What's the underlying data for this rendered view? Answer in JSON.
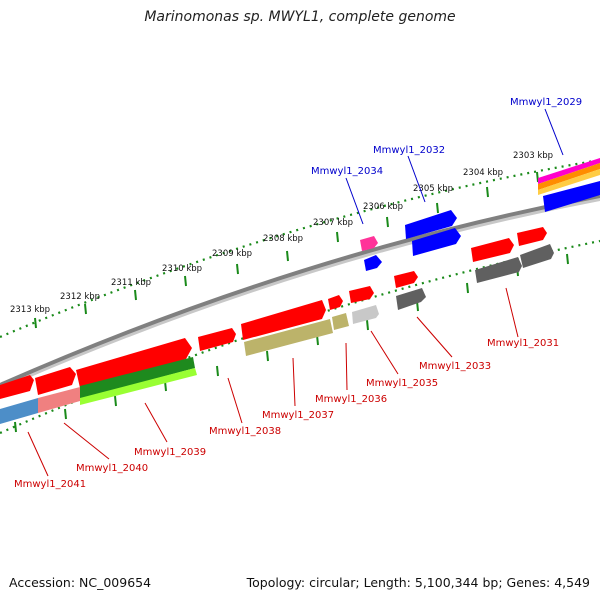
{
  "title": "Marinomonas sp. MWYL1, complete genome",
  "footer": {
    "accession": "Accession: NC_009654",
    "summary": "Topology: circular; Length: 5,100,344 bp; Genes: 4,549"
  },
  "scale_labels": [
    "2313 kbp",
    "2312 kbp",
    "2311 kbp",
    "2310 kbp",
    "2309 kbp",
    "2308 kbp",
    "2307 kbp",
    "2306 kbp",
    "2305 kbp",
    "2304 kbp",
    "2303 kbp"
  ],
  "gene_labels_forward": [
    "Mmwyl1_2034",
    "Mmwyl1_2032",
    "Mmwyl1_2029"
  ],
  "gene_labels_reverse": [
    "Mmwyl1_2031",
    "Mmwyl1_2033",
    "Mmwyl1_2035",
    "Mmwyl1_2036",
    "Mmwyl1_2037",
    "Mmwyl1_2038",
    "Mmwyl1_2039",
    "Mmwyl1_2040",
    "Mmwyl1_2041"
  ],
  "colors": {
    "backbone": "#8a8a8a",
    "gene_red": "#ff0000",
    "gene_blue": "#0000ff",
    "gene_gray": "#707070",
    "scale_dots": "#1a8a1a",
    "label_forward": "#0000cc",
    "label_reverse": "#cc0000"
  }
}
